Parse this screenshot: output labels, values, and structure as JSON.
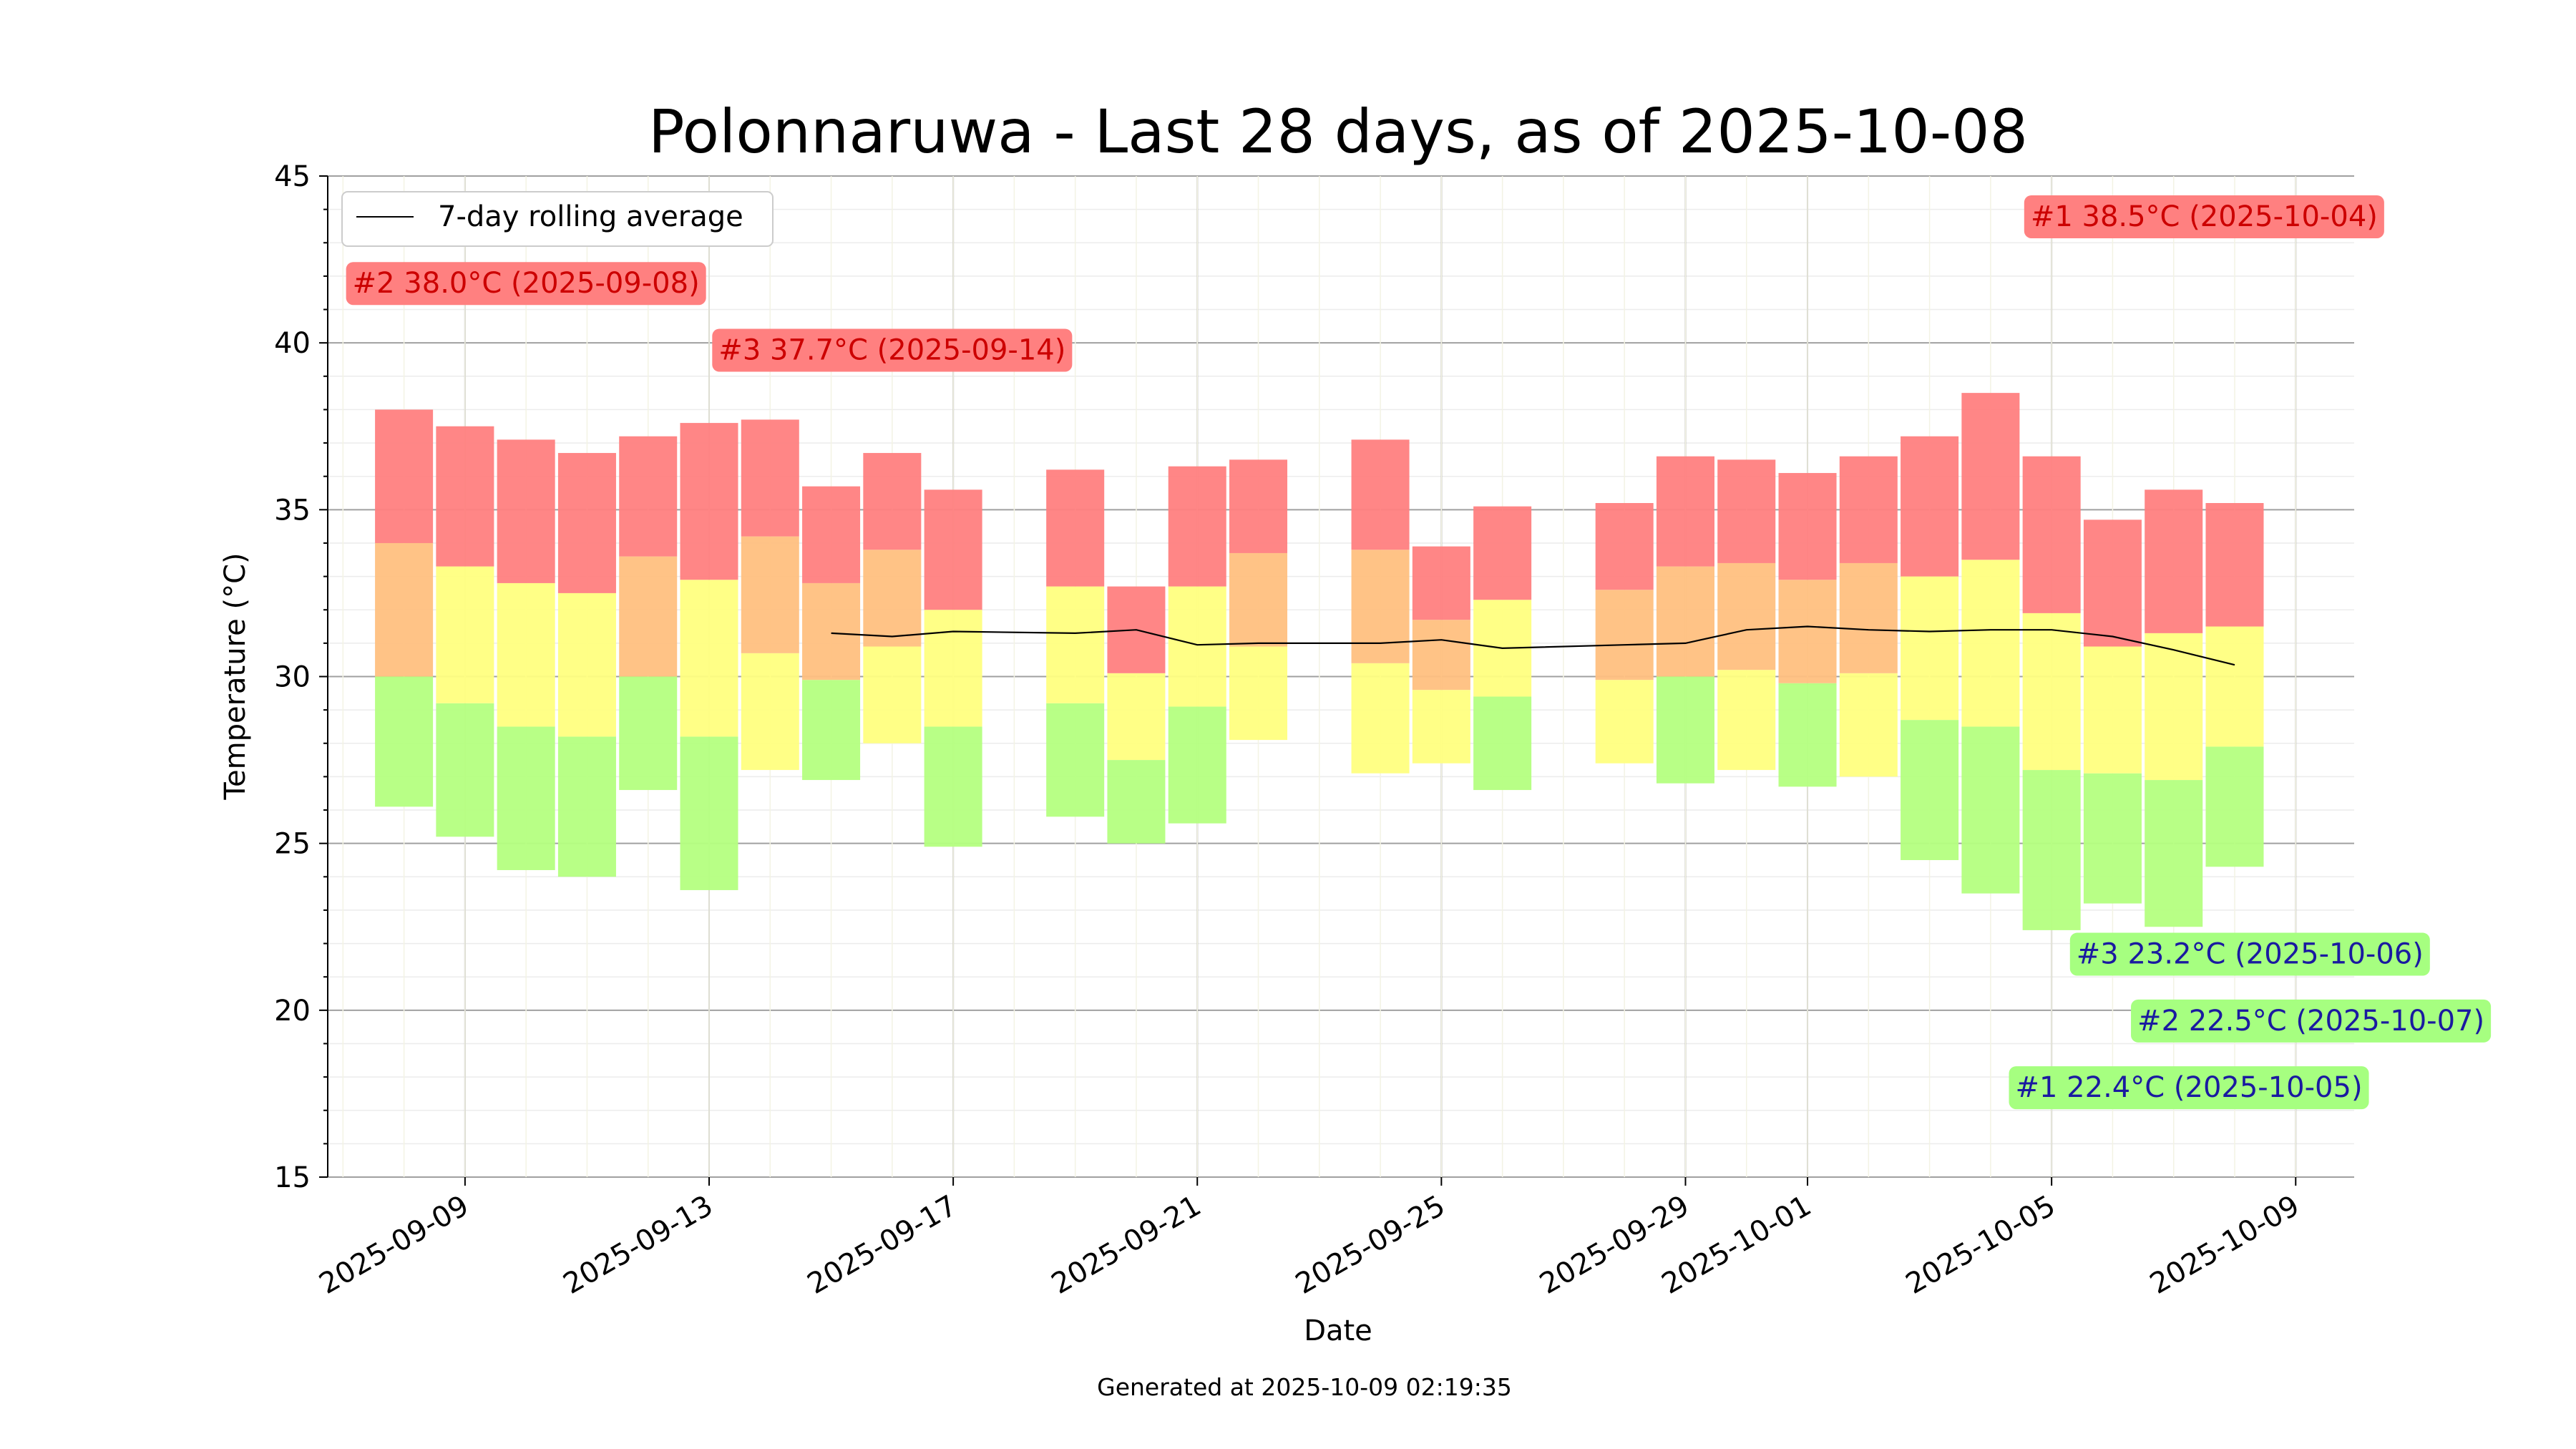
{
  "chart_data": {
    "type": "bar",
    "title": "Polonnaruwa - Last 28 days, as of 2025-10-08",
    "xlabel": "Date",
    "ylabel": "Temperature (°C)",
    "footer": "Generated at 2025-10-09 02:19:35",
    "ylim": [
      15,
      45
    ],
    "xlim": [
      "2025-09-06T18:00",
      "2025-10-09T23:00"
    ],
    "y_ticks": [
      "15",
      "20",
      "25",
      "30",
      "35",
      "40",
      "45"
    ],
    "x_ticks": [
      "2025-09-09",
      "2025-09-13",
      "2025-09-17",
      "2025-09-21",
      "2025-09-25",
      "2025-09-29",
      "2025-10-01",
      "2025-10-05",
      "2025-10-09"
    ],
    "grid": true,
    "legend": {
      "position": "top-left",
      "entries": [
        "7-day rolling average"
      ]
    },
    "colors": {
      "max_band": "#ff8080",
      "upper_mid_band": "#ffc080",
      "lower_mid_band": "#ffff80",
      "min_band": "#b4ff80",
      "hot_label_bg": "#ff8080",
      "hot_label_text": "#cc0000",
      "cold_label_bg": "#a6ff80",
      "cold_label_text": "#1a1aa0",
      "rolling_line": "#000000"
    },
    "days": [
      {
        "date": "2025-09-08",
        "min": 26.1,
        "q1": 30.0,
        "q2": 34.0,
        "max": 38.0
      },
      {
        "date": "2025-09-09",
        "min": 25.2,
        "q1": 29.2,
        "q2": 33.3,
        "max": 37.5
      },
      {
        "date": "2025-09-10",
        "min": 24.2,
        "q1": 28.5,
        "q2": 32.8,
        "max": 37.1
      },
      {
        "date": "2025-09-11",
        "min": 24.0,
        "q1": 28.2,
        "q2": 32.5,
        "max": 36.7
      },
      {
        "date": "2025-09-12",
        "min": 26.6,
        "q1": 30.0,
        "q2": 33.6,
        "max": 37.2
      },
      {
        "date": "2025-09-13",
        "min": 23.6,
        "q1": 28.2,
        "q2": 32.9,
        "max": 37.6
      },
      {
        "date": "2025-09-14",
        "min": 27.2,
        "q1": 30.7,
        "q2": 34.2,
        "max": 37.7
      },
      {
        "date": "2025-09-15",
        "min": 26.9,
        "q1": 29.9,
        "q2": 32.8,
        "max": 35.7
      },
      {
        "date": "2025-09-16",
        "min": 28.0,
        "q1": 30.9,
        "q2": 33.8,
        "max": 36.7
      },
      {
        "date": "2025-09-17",
        "min": 24.9,
        "q1": 28.5,
        "q2": 32.0,
        "max": 35.6
      },
      {
        "date": "2025-09-19",
        "min": 25.8,
        "q1": 29.2,
        "q2": 32.7,
        "max": 36.2
      },
      {
        "date": "2025-09-20",
        "min": 25.0,
        "q1": 27.5,
        "q2": 30.1,
        "max": 32.7
      },
      {
        "date": "2025-09-21",
        "min": 25.6,
        "q1": 29.1,
        "q2": 32.7,
        "max": 36.3
      },
      {
        "date": "2025-09-22",
        "min": 28.1,
        "q1": 30.9,
        "q2": 33.7,
        "max": 36.5
      },
      {
        "date": "2025-09-24",
        "min": 27.1,
        "q1": 30.4,
        "q2": 33.8,
        "max": 37.1
      },
      {
        "date": "2025-09-25",
        "min": 27.4,
        "q1": 29.6,
        "q2": 31.7,
        "max": 33.9
      },
      {
        "date": "2025-09-26",
        "min": 26.6,
        "q1": 29.4,
        "q2": 32.3,
        "max": 35.1
      },
      {
        "date": "2025-09-28",
        "min": 27.4,
        "q1": 29.9,
        "q2": 32.6,
        "max": 35.2
      },
      {
        "date": "2025-09-29",
        "min": 26.8,
        "q1": 30.0,
        "q2": 33.3,
        "max": 36.6
      },
      {
        "date": "2025-09-30",
        "min": 27.2,
        "q1": 30.2,
        "q2": 33.4,
        "max": 36.5
      },
      {
        "date": "2025-10-01",
        "min": 26.7,
        "q1": 29.8,
        "q2": 32.9,
        "max": 36.1
      },
      {
        "date": "2025-10-02",
        "min": 27.0,
        "q1": 30.1,
        "q2": 33.4,
        "max": 36.6
      },
      {
        "date": "2025-10-03",
        "min": 24.5,
        "q1": 28.7,
        "q2": 33.0,
        "max": 37.2
      },
      {
        "date": "2025-10-04",
        "min": 23.5,
        "q1": 28.5,
        "q2": 33.5,
        "max": 38.5
      },
      {
        "date": "2025-10-05",
        "min": 22.4,
        "q1": 27.2,
        "q2": 31.9,
        "max": 36.6
      },
      {
        "date": "2025-10-06",
        "min": 23.2,
        "q1": 27.1,
        "q2": 30.9,
        "max": 34.7
      },
      {
        "date": "2025-10-07",
        "min": 22.5,
        "q1": 26.9,
        "q2": 31.3,
        "max": 35.6
      },
      {
        "date": "2025-10-08",
        "min": 24.3,
        "q1": 27.9,
        "q2": 31.5,
        "max": 35.2
      }
    ],
    "rolling_average": [
      {
        "date": "2025-09-15",
        "value": 31.3
      },
      {
        "date": "2025-09-16",
        "value": 31.2
      },
      {
        "date": "2025-09-17",
        "value": 31.35
      },
      {
        "date": "2025-09-19",
        "value": 31.3
      },
      {
        "date": "2025-09-20",
        "value": 31.4
      },
      {
        "date": "2025-09-21",
        "value": 30.95
      },
      {
        "date": "2025-09-22",
        "value": 31.0
      },
      {
        "date": "2025-09-24",
        "value": 31.0
      },
      {
        "date": "2025-09-25",
        "value": 31.1
      },
      {
        "date": "2025-09-26",
        "value": 30.85
      },
      {
        "date": "2025-09-28",
        "value": 30.95
      },
      {
        "date": "2025-09-29",
        "value": 31.0
      },
      {
        "date": "2025-09-30",
        "value": 31.4
      },
      {
        "date": "2025-10-01",
        "value": 31.5
      },
      {
        "date": "2025-10-02",
        "value": 31.4
      },
      {
        "date": "2025-10-03",
        "value": 31.35
      },
      {
        "date": "2025-10-04",
        "value": 31.4
      },
      {
        "date": "2025-10-05",
        "value": 31.4
      },
      {
        "date": "2025-10-06",
        "value": 31.2
      },
      {
        "date": "2025-10-07",
        "value": 30.8
      },
      {
        "date": "2025-10-08",
        "value": 30.35
      }
    ],
    "annotations": [
      {
        "text": "#1 38.5°C (2025-10-04)",
        "kind": "hot",
        "anchor_date": "2025-10-07T12:00",
        "anchor_value": 43.8
      },
      {
        "text": "#2 38.0°C (2025-09-08)",
        "kind": "hot",
        "anchor_date": "2025-09-10T00:00",
        "anchor_value": 41.8
      },
      {
        "text": "#3 37.7°C (2025-09-14)",
        "kind": "hot",
        "anchor_date": "2025-09-16T00:00",
        "anchor_value": 39.8
      },
      {
        "text": "#3 23.2°C (2025-10-06)",
        "kind": "cold",
        "anchor_date": "2025-10-08T06:00",
        "anchor_value": 21.7
      },
      {
        "text": "#2 22.5°C (2025-10-07)",
        "kind": "cold",
        "anchor_date": "2025-10-09T06:00",
        "anchor_value": 19.7
      },
      {
        "text": "#1 22.4°C (2025-10-05)",
        "kind": "cold",
        "anchor_date": "2025-10-07T06:00",
        "anchor_value": 17.7
      }
    ]
  }
}
